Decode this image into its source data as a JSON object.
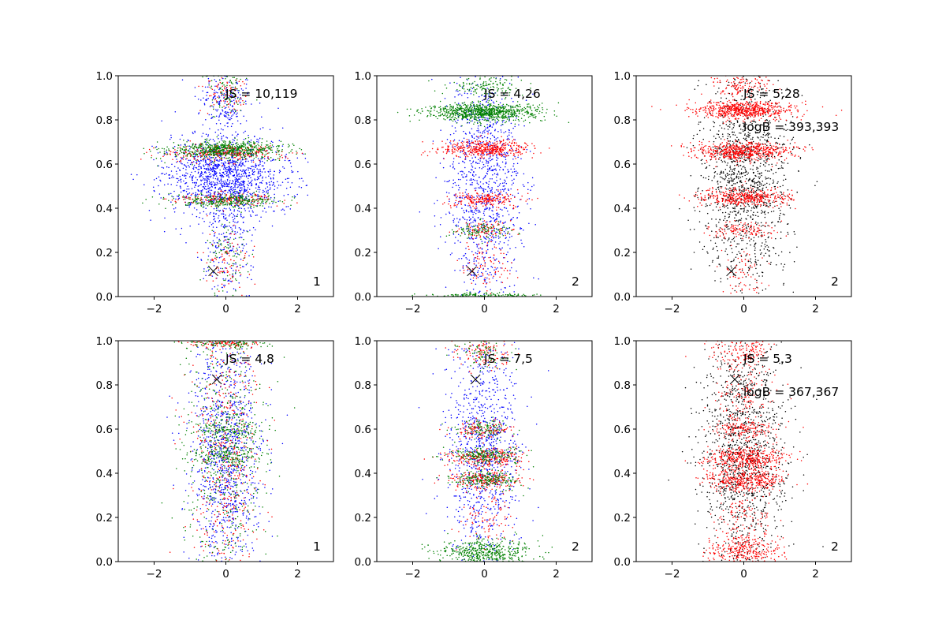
{
  "figure": {
    "rows": 2,
    "cols": 3
  },
  "chart_data": [
    {
      "type": "scatter",
      "panel_label": "1",
      "annotations": [
        "JS = 10,119"
      ],
      "xlim": [
        -3,
        3
      ],
      "ylim": [
        0,
        1
      ],
      "xticks": [
        -2,
        0,
        2
      ],
      "yticks": [
        0.0,
        0.2,
        0.4,
        0.6,
        0.8,
        1.0
      ],
      "xtick_labels": [
        "−2",
        "0",
        "2"
      ],
      "ytick_labels": [
        "0.0",
        "0.2",
        "0.4",
        "0.6",
        "0.8",
        "1.0"
      ],
      "marker": {
        "x": -0.35,
        "y": 0.115,
        "symbol": "x"
      },
      "series": [
        {
          "color": "#0000ff",
          "clusters": [
            {
              "y": 0.55,
              "sy": 0.09,
              "sx": 0.85,
              "n": 1300
            },
            {
              "y": 0.26,
              "sy": 0.14,
              "sx": 0.35,
              "n": 260
            },
            {
              "y": 0.88,
              "sy": 0.07,
              "sx": 0.35,
              "n": 200
            }
          ]
        },
        {
          "color": "#ff0000",
          "clusters": [
            {
              "y": 0.65,
              "sy": 0.018,
              "sx": 0.75,
              "n": 320
            },
            {
              "y": 0.44,
              "sy": 0.015,
              "sx": 0.75,
              "n": 180
            },
            {
              "y": 0.16,
              "sy": 0.07,
              "sx": 0.3,
              "n": 90
            },
            {
              "y": 0.92,
              "sy": 0.05,
              "sx": 0.3,
              "n": 80
            }
          ]
        },
        {
          "color": "#008000",
          "clusters": [
            {
              "y": 0.665,
              "sy": 0.02,
              "sx": 0.8,
              "n": 650
            },
            {
              "y": 0.435,
              "sy": 0.015,
              "sx": 0.75,
              "n": 300
            },
            {
              "y": 0.2,
              "sy": 0.09,
              "sx": 0.3,
              "n": 90
            },
            {
              "y": 0.93,
              "sy": 0.05,
              "sx": 0.3,
              "n": 90
            }
          ]
        }
      ]
    },
    {
      "type": "scatter",
      "panel_label": "2",
      "annotations": [
        "JS = 4,26"
      ],
      "xlim": [
        -3,
        3
      ],
      "ylim": [
        0,
        1
      ],
      "xticks": [
        -2,
        0,
        2
      ],
      "yticks": [
        0.0,
        0.2,
        0.4,
        0.6,
        0.8,
        1.0
      ],
      "xtick_labels": [
        "−2",
        "0",
        "2"
      ],
      "ytick_labels": [
        "0.0",
        "0.2",
        "0.4",
        "0.6",
        "0.8",
        "1.0"
      ],
      "marker": {
        "x": -0.35,
        "y": 0.115,
        "symbol": "x"
      },
      "series": [
        {
          "color": "#0000ff",
          "clusters": [
            {
              "y": 0.5,
              "sy": 0.27,
              "sx": 0.55,
              "n": 1100
            }
          ]
        },
        {
          "color": "#ff0000",
          "clusters": [
            {
              "y": 0.67,
              "sy": 0.02,
              "sx": 0.6,
              "n": 450
            },
            {
              "y": 0.44,
              "sy": 0.018,
              "sx": 0.5,
              "n": 220
            },
            {
              "y": 0.3,
              "sy": 0.02,
              "sx": 0.4,
              "n": 90
            },
            {
              "y": 0.15,
              "sy": 0.06,
              "sx": 0.35,
              "n": 90
            }
          ]
        },
        {
          "color": "#008000",
          "clusters": [
            {
              "y": 0.835,
              "sy": 0.02,
              "sx": 0.75,
              "n": 900
            },
            {
              "y": 0.95,
              "sy": 0.03,
              "sx": 0.5,
              "n": 150
            },
            {
              "y": 0.3,
              "sy": 0.02,
              "sx": 0.45,
              "n": 110
            },
            {
              "y": 0.005,
              "sy": 0.006,
              "sx": 0.7,
              "n": 140
            }
          ]
        }
      ]
    },
    {
      "type": "scatter",
      "panel_label": "2",
      "annotations": [
        "JS = 5,28",
        "logB = 393,393"
      ],
      "xlim": [
        -3,
        3
      ],
      "ylim": [
        0,
        1
      ],
      "xticks": [
        -2,
        0,
        2
      ],
      "yticks": [
        0.0,
        0.2,
        0.4,
        0.6,
        0.8,
        1.0
      ],
      "xtick_labels": [
        "−2",
        "0",
        "2"
      ],
      "ytick_labels": [
        "0.0",
        "0.2",
        "0.4",
        "0.6",
        "0.8",
        "1.0"
      ],
      "marker": {
        "x": -0.35,
        "y": 0.115,
        "symbol": "x"
      },
      "series": [
        {
          "color": "#000000",
          "clusters": [
            {
              "y": 0.55,
              "sy": 0.23,
              "sx": 0.6,
              "n": 1300
            }
          ]
        },
        {
          "color": "#ff0000",
          "clusters": [
            {
              "y": 0.845,
              "sy": 0.02,
              "sx": 0.7,
              "n": 650
            },
            {
              "y": 0.66,
              "sy": 0.02,
              "sx": 0.7,
              "n": 600
            },
            {
              "y": 0.45,
              "sy": 0.02,
              "sx": 0.65,
              "n": 400
            },
            {
              "y": 0.3,
              "sy": 0.02,
              "sx": 0.45,
              "n": 120
            },
            {
              "y": 0.96,
              "sy": 0.03,
              "sx": 0.4,
              "n": 120
            },
            {
              "y": 0.1,
              "sy": 0.07,
              "sx": 0.3,
              "n": 70
            }
          ]
        }
      ]
    },
    {
      "type": "scatter",
      "panel_label": "1",
      "annotations": [
        "JS = 4,8"
      ],
      "xlim": [
        -3,
        3
      ],
      "ylim": [
        0,
        1
      ],
      "xticks": [
        -2,
        0,
        2
      ],
      "yticks": [
        0.0,
        0.2,
        0.4,
        0.6,
        0.8,
        1.0
      ],
      "xtick_labels": [
        "−2",
        "0",
        "2"
      ],
      "ytick_labels": [
        "0.0",
        "0.2",
        "0.4",
        "0.6",
        "0.8",
        "1.0"
      ],
      "marker": {
        "x": -0.25,
        "y": 0.825,
        "symbol": "x"
      },
      "series": [
        {
          "color": "#0000ff",
          "clusters": [
            {
              "y": 0.5,
              "sy": 0.3,
              "sx": 0.5,
              "n": 1100
            }
          ]
        },
        {
          "color": "#ff0000",
          "clusters": [
            {
              "y": 0.5,
              "sy": 0.3,
              "sx": 0.5,
              "n": 500
            },
            {
              "y": 0.99,
              "sy": 0.01,
              "sx": 0.5,
              "n": 100
            }
          ]
        },
        {
          "color": "#008000",
          "clusters": [
            {
              "y": 0.5,
              "sy": 0.3,
              "sx": 0.55,
              "n": 600
            },
            {
              "y": 0.6,
              "sy": 0.02,
              "sx": 0.5,
              "n": 120
            },
            {
              "y": 0.48,
              "sy": 0.02,
              "sx": 0.5,
              "n": 140
            },
            {
              "y": 0.99,
              "sy": 0.01,
              "sx": 0.6,
              "n": 100
            }
          ]
        }
      ]
    },
    {
      "type": "scatter",
      "panel_label": "2",
      "annotations": [
        "JS = 7,5"
      ],
      "xlim": [
        -3,
        3
      ],
      "ylim": [
        0,
        1
      ],
      "xticks": [
        -2,
        0,
        2
      ],
      "yticks": [
        0.0,
        0.2,
        0.4,
        0.6,
        0.8,
        1.0
      ],
      "xtick_labels": [
        "−2",
        "0",
        "2"
      ],
      "ytick_labels": [
        "0.0",
        "0.2",
        "0.4",
        "0.6",
        "0.8",
        "1.0"
      ],
      "marker": {
        "x": -0.25,
        "y": 0.825,
        "symbol": "x"
      },
      "series": [
        {
          "color": "#0000ff",
          "clusters": [
            {
              "y": 0.5,
              "sy": 0.28,
              "sx": 0.5,
              "n": 1000
            }
          ]
        },
        {
          "color": "#ff0000",
          "clusters": [
            {
              "y": 0.47,
              "sy": 0.02,
              "sx": 0.5,
              "n": 260
            },
            {
              "y": 0.37,
              "sy": 0.02,
              "sx": 0.5,
              "n": 220
            },
            {
              "y": 0.6,
              "sy": 0.02,
              "sx": 0.4,
              "n": 120
            },
            {
              "y": 0.95,
              "sy": 0.04,
              "sx": 0.4,
              "n": 120
            },
            {
              "y": 0.2,
              "sy": 0.08,
              "sx": 0.35,
              "n": 90
            }
          ]
        },
        {
          "color": "#008000",
          "clusters": [
            {
              "y": 0.04,
              "sy": 0.03,
              "sx": 0.65,
              "n": 500
            },
            {
              "y": 0.48,
              "sy": 0.02,
              "sx": 0.5,
              "n": 200
            },
            {
              "y": 0.37,
              "sy": 0.02,
              "sx": 0.5,
              "n": 200
            },
            {
              "y": 0.6,
              "sy": 0.02,
              "sx": 0.4,
              "n": 100
            },
            {
              "y": 0.95,
              "sy": 0.04,
              "sx": 0.4,
              "n": 80
            }
          ]
        }
      ]
    },
    {
      "type": "scatter",
      "panel_label": "2",
      "annotations": [
        "JS = 5,3",
        "logB = 367,367"
      ],
      "xlim": [
        -3,
        3
      ],
      "ylim": [
        0,
        1
      ],
      "xticks": [
        -2,
        0,
        2
      ],
      "yticks": [
        0.0,
        0.2,
        0.4,
        0.6,
        0.8,
        1.0
      ],
      "xtick_labels": [
        "−2",
        "0",
        "2"
      ],
      "ytick_labels": [
        "0.0",
        "0.2",
        "0.4",
        "0.6",
        "0.8",
        "1.0"
      ],
      "marker": {
        "x": -0.25,
        "y": 0.825,
        "symbol": "x"
      },
      "series": [
        {
          "color": "#000000",
          "clusters": [
            {
              "y": 0.5,
              "sy": 0.28,
              "sx": 0.55,
              "n": 1300
            }
          ]
        },
        {
          "color": "#ff0000",
          "clusters": [
            {
              "y": 0.47,
              "sy": 0.025,
              "sx": 0.55,
              "n": 420
            },
            {
              "y": 0.37,
              "sy": 0.025,
              "sx": 0.55,
              "n": 380
            },
            {
              "y": 0.6,
              "sy": 0.02,
              "sx": 0.45,
              "n": 160
            },
            {
              "y": 0.05,
              "sy": 0.04,
              "sx": 0.5,
              "n": 300
            },
            {
              "y": 0.95,
              "sy": 0.04,
              "sx": 0.45,
              "n": 160
            },
            {
              "y": 0.2,
              "sy": 0.08,
              "sx": 0.4,
              "n": 120
            },
            {
              "y": 0.75,
              "sy": 0.06,
              "sx": 0.4,
              "n": 120
            }
          ]
        }
      ]
    }
  ]
}
